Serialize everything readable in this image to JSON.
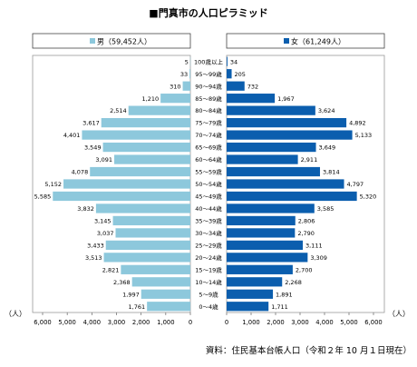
{
  "chart_data": {
    "type": "bar",
    "title": "■門真市の人口ピラミッド",
    "source": "資料：住民基本台帳人口（令和２年 10 月１日現在）",
    "unit_label": "（人）",
    "male_label": "男（59,452人）",
    "female_label": "女（61,249人）",
    "categories": [
      "100歳以上",
      "95～99歳",
      "90～94歳",
      "85～89歳",
      "80～84歳",
      "75～79歳",
      "70～74歳",
      "65～69歳",
      "60～64歳",
      "55～59歳",
      "50～54歳",
      "45～49歳",
      "40～44歳",
      "35～39歳",
      "30～34歳",
      "25～29歳",
      "20～24歳",
      "15～19歳",
      "10～14歳",
      "5～9歳",
      "0～4歳"
    ],
    "series": [
      {
        "name": "男（59,452人）",
        "color": "#8dc8dc",
        "values": [
          5,
          33,
          310,
          1210,
          2514,
          3617,
          4401,
          3549,
          3091,
          4078,
          5152,
          5585,
          3832,
          3145,
          3037,
          3433,
          3513,
          2821,
          2368,
          1997,
          1761
        ],
        "labels": [
          "5",
          "33",
          "310",
          "1,210",
          "2,514",
          "3,617",
          "4,401",
          "3,549",
          "3,091",
          "4,078",
          "5,152",
          "5,585",
          "3,832",
          "3,145",
          "3,037",
          "3,433",
          "3,513",
          "2,821",
          "2,368",
          "1,997",
          "1,761"
        ]
      },
      {
        "name": "女（61,249人）",
        "color": "#0b5eae",
        "values": [
          34,
          205,
          732,
          1967,
          3624,
          4892,
          5133,
          3649,
          2911,
          3814,
          4797,
          5320,
          3585,
          2806,
          2790,
          3111,
          3309,
          2700,
          2268,
          1891,
          1711
        ],
        "labels": [
          "34",
          "205",
          "732",
          "1,967",
          "3,624",
          "4,892",
          "5,133",
          "3,649",
          "2,911",
          "3,814",
          "4,797",
          "5,320",
          "3,585",
          "2,806",
          "2,790",
          "3,111",
          "3,309",
          "2,700",
          "2,268",
          "1,891",
          "1,711"
        ]
      }
    ],
    "male_ticks": [
      "6,000",
      "5,000",
      "4,000",
      "3,000",
      "2,000",
      "1,000",
      "0"
    ],
    "female_ticks": [
      "0",
      "1,000",
      "2,000",
      "3,000",
      "4,000",
      "5,000",
      "6,000"
    ],
    "xlim": [
      0,
      6000
    ]
  }
}
